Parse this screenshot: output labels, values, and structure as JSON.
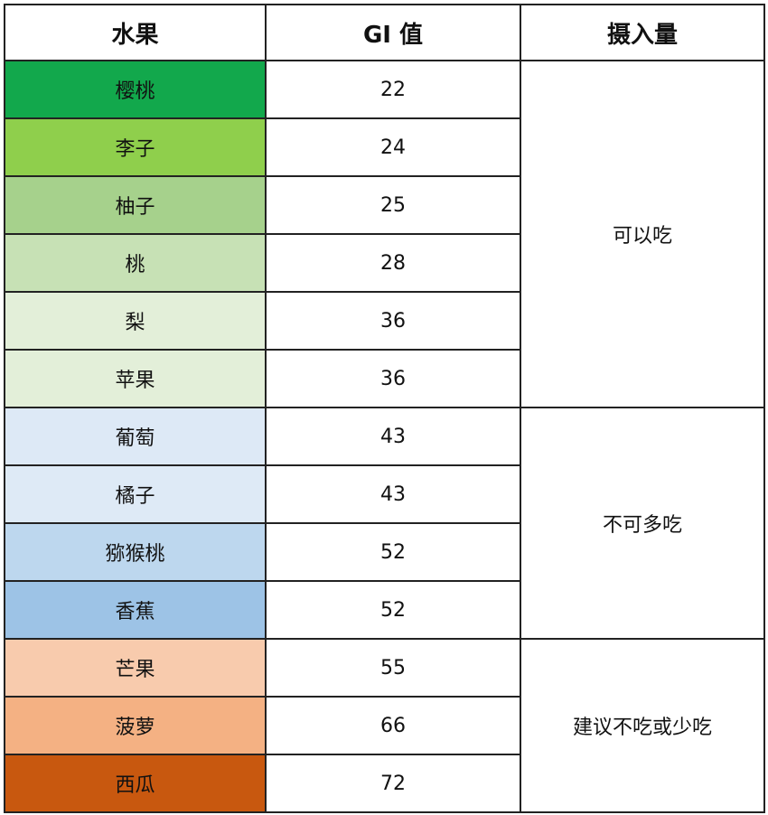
{
  "headers": {
    "fruit": "水果",
    "gi": "GI 值",
    "intake": "摄入量"
  },
  "rows": [
    {
      "fruit": "樱桃",
      "gi": "22",
      "color": "#12a84c"
    },
    {
      "fruit": "李子",
      "gi": "24",
      "color": "#8fcf4c"
    },
    {
      "fruit": "柚子",
      "gi": "25",
      "color": "#a6d18c"
    },
    {
      "fruit": "桃",
      "gi": "28",
      "color": "#c7e1b5"
    },
    {
      "fruit": "梨",
      "gi": "36",
      "color": "#e3efd9"
    },
    {
      "fruit": "苹果",
      "gi": "36",
      "color": "#e3efd9"
    },
    {
      "fruit": "葡萄",
      "gi": "43",
      "color": "#dde9f6"
    },
    {
      "fruit": "橘子",
      "gi": "43",
      "color": "#deeaf6"
    },
    {
      "fruit": "猕猴桃",
      "gi": "52",
      "color": "#bdd7ee"
    },
    {
      "fruit": "香蕉",
      "gi": "52",
      "color": "#9dc3e6"
    },
    {
      "fruit": "芒果",
      "gi": "55",
      "color": "#f8cbad"
    },
    {
      "fruit": "菠萝",
      "gi": "66",
      "color": "#f4b183"
    },
    {
      "fruit": "西瓜",
      "gi": "72",
      "color": "#c8580f"
    }
  ],
  "groups": [
    {
      "label": "可以吃",
      "span": 6
    },
    {
      "label": "不可多吃",
      "span": 4
    },
    {
      "label": "建议不吃或少吃",
      "span": 3
    }
  ]
}
